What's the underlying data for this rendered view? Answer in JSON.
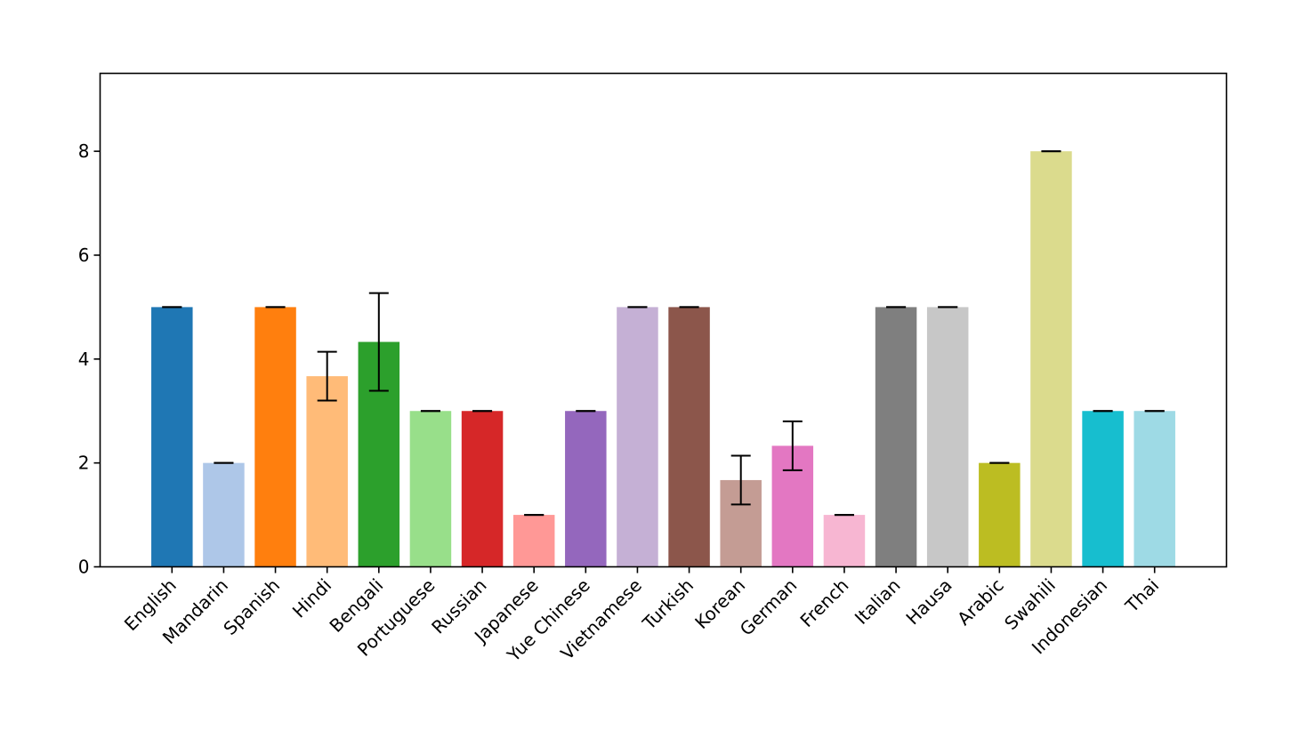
{
  "chart_data": {
    "type": "bar",
    "title": "",
    "xlabel": "",
    "ylabel": "",
    "ylim": [
      0,
      9.5
    ],
    "yticks": [
      "0",
      "2",
      "4",
      "6",
      "8"
    ],
    "categories": [
      "English",
      "Mandarin",
      "Spanish",
      "Hindi",
      "Bengali",
      "Portuguese",
      "Russian",
      "Japanese",
      "Yue Chinese",
      "Vietnamese",
      "Turkish",
      "Korean",
      "German",
      "French",
      "Italian",
      "Hausa",
      "Arabic",
      "Swahili",
      "Indonesian",
      "Thai"
    ],
    "values": [
      5,
      2,
      5,
      3.67,
      4.33,
      3,
      3,
      1,
      3,
      5,
      5,
      1.67,
      2.33,
      1,
      5,
      5,
      2,
      8,
      3,
      3
    ],
    "errors": [
      0,
      0,
      0,
      0.47,
      0.94,
      0,
      0,
      0,
      0,
      0,
      0,
      0.47,
      0.47,
      0,
      0,
      0,
      0,
      0,
      0,
      0
    ],
    "colors": [
      "#1f77b4",
      "#aec7e8",
      "#ff7f0e",
      "#ffbb78",
      "#2ca02c",
      "#98df8a",
      "#d62728",
      "#ff9896",
      "#9467bd",
      "#c5b0d5",
      "#8c564b",
      "#c49c94",
      "#e377c2",
      "#f7b6d2",
      "#7f7f7f",
      "#c7c7c7",
      "#bcbd22",
      "#dbdb8d",
      "#17becf",
      "#9edae5"
    ]
  }
}
